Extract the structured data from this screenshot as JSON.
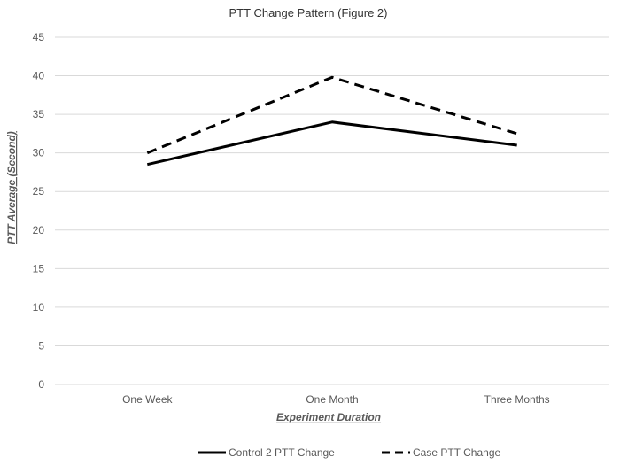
{
  "chart_data": {
    "type": "line",
    "title": "PTT Change Pattern (Figure 2)",
    "xlabel": "Experiment Duration",
    "ylabel": "PTT Average (Second)",
    "categories": [
      "One Week",
      "One Month",
      "Three Months"
    ],
    "ylim": [
      0,
      45
    ],
    "yticks": [
      "0",
      "5",
      "10",
      "15",
      "20",
      "25",
      "30",
      "35",
      "40",
      "45"
    ],
    "grid": true,
    "legend_position": "bottom",
    "series": [
      {
        "name": "Control 2 PTT Change",
        "values": [
          28.5,
          34,
          31
        ],
        "color": "#000000",
        "dash": "solid"
      },
      {
        "name": "Case PTT Change",
        "values": [
          30,
          39.8,
          32.5
        ],
        "color": "#000000",
        "dash": "dashed"
      }
    ]
  }
}
